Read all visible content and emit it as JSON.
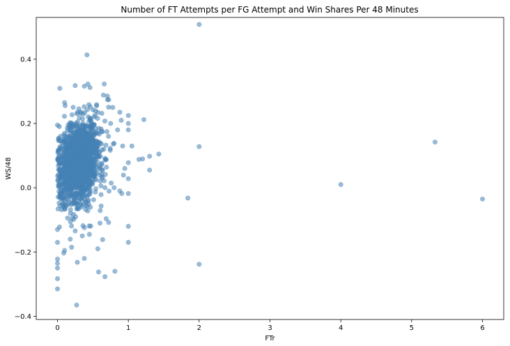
{
  "chart_data": {
    "type": "scatter",
    "title": "Number of FT Attempts per FG Attempt and Win Shares Per 48 Minutes",
    "xlabel": "FTr",
    "ylabel": "WS/48",
    "xlim": [
      -0.3,
      6.3
    ],
    "ylim": [
      -0.41,
      0.53
    ],
    "x_ticks": [
      0,
      1,
      2,
      3,
      4,
      5,
      6
    ],
    "y_ticks": [
      -0.4,
      -0.2,
      0.0,
      0.2,
      0.4
    ],
    "x_tick_labels": [
      "0",
      "1",
      "2",
      "3",
      "4",
      "5",
      "6"
    ],
    "y_tick_labels": [
      "−0.4",
      "−0.2",
      "0.0",
      "0.2",
      "0.4"
    ],
    "grid": false,
    "marker_color": "#4682b4",
    "marker_alpha": 0.55,
    "points": [
      {
        "x": 2.0,
        "y": 0.508
      },
      {
        "x": 2.0,
        "y": 0.128
      },
      {
        "x": 2.0,
        "y": -0.238
      },
      {
        "x": 1.84,
        "y": -0.032
      },
      {
        "x": 4.0,
        "y": 0.01
      },
      {
        "x": 5.33,
        "y": 0.142
      },
      {
        "x": 6.0,
        "y": -0.035
      },
      {
        "x": 0.27,
        "y": -0.365
      },
      {
        "x": 0.0,
        "y": -0.315
      },
      {
        "x": 0.0,
        "y": -0.283
      },
      {
        "x": 0.0,
        "y": -0.25
      },
      {
        "x": 0.0,
        "y": -0.235
      },
      {
        "x": 0.0,
        "y": -0.222
      },
      {
        "x": 0.67,
        "y": -0.277
      },
      {
        "x": 0.58,
        "y": -0.262
      },
      {
        "x": 0.81,
        "y": -0.26
      },
      {
        "x": 0.38,
        "y": -0.22
      },
      {
        "x": 0.28,
        "y": -0.232
      },
      {
        "x": 0.57,
        "y": -0.19
      },
      {
        "x": 1.0,
        "y": -0.17
      },
      {
        "x": 1.0,
        "y": -0.12
      },
      {
        "x": 1.0,
        "y": -0.018
      },
      {
        "x": 1.0,
        "y": 0.028
      },
      {
        "x": 1.0,
        "y": 0.078
      },
      {
        "x": 1.0,
        "y": 0.2
      },
      {
        "x": 1.0,
        "y": 0.225
      },
      {
        "x": 1.0,
        "y": 0.18
      },
      {
        "x": 1.05,
        "y": 0.13
      },
      {
        "x": 1.15,
        "y": 0.088
      },
      {
        "x": 1.22,
        "y": 0.212
      },
      {
        "x": 1.3,
        "y": 0.098
      },
      {
        "x": 1.3,
        "y": 0.055
      },
      {
        "x": 1.43,
        "y": 0.105
      },
      {
        "x": 0.66,
        "y": 0.323
      },
      {
        "x": 0.43,
        "y": 0.323
      },
      {
        "x": 0.38,
        "y": 0.316
      },
      {
        "x": 0.25,
        "y": 0.318
      },
      {
        "x": 0.1,
        "y": 0.265
      },
      {
        "x": 0.0,
        "y": 0.195
      },
      {
        "x": 0.0,
        "y": -0.17
      },
      {
        "x": 0.0,
        "y": -0.13
      },
      {
        "x": 0.03,
        "y": -0.122
      },
      {
        "x": 0.1,
        "y": -0.195
      },
      {
        "x": 0.18,
        "y": -0.16
      },
      {
        "x": 0.2,
        "y": -0.185
      },
      {
        "x": 0.35,
        "y": -0.15
      },
      {
        "x": 0.45,
        "y": -0.145
      },
      {
        "x": 0.6,
        "y": -0.11
      },
      {
        "x": 0.78,
        "y": 0.25
      },
      {
        "x": 0.88,
        "y": 0.235
      },
      {
        "x": 0.9,
        "y": 0.21
      },
      {
        "x": 0.92,
        "y": 0.13
      },
      {
        "x": 0.95,
        "y": 0.06
      },
      {
        "x": 0.88,
        "y": -0.01
      },
      {
        "x": 0.8,
        "y": 0.0
      },
      {
        "x": 0.72,
        "y": 0.16
      },
      {
        "x": 0.75,
        "y": 0.2
      }
    ]
  }
}
